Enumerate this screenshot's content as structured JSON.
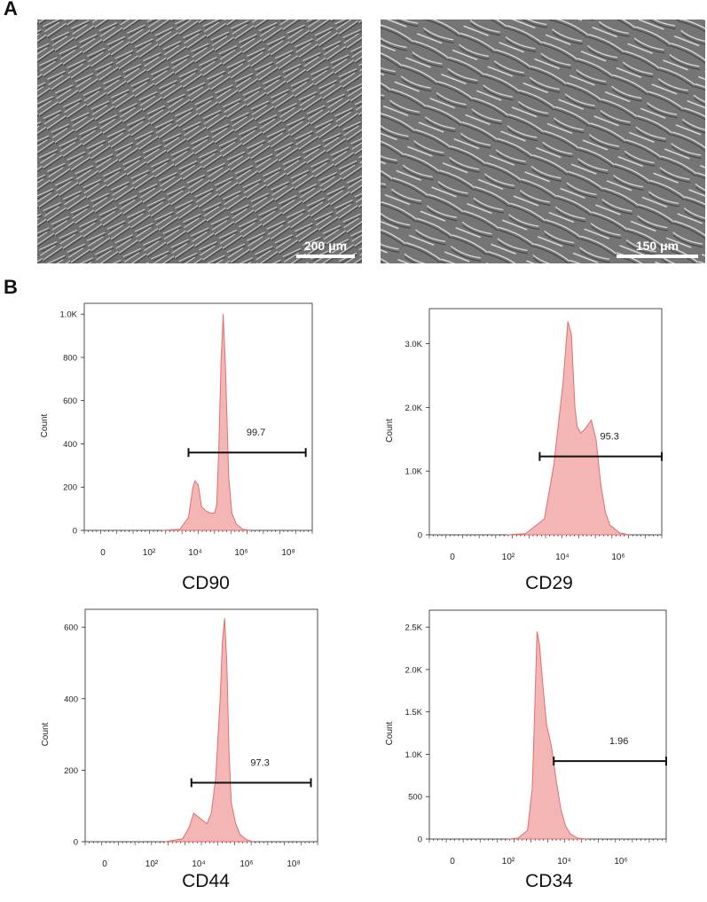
{
  "panel_labels": {
    "a": "A",
    "b": "B"
  },
  "micrographs": [
    {
      "scale_label": "200 μm"
    },
    {
      "scale_label": "150 μm"
    }
  ],
  "chart_data": [
    {
      "type": "area",
      "title": "CD90",
      "ylabel": "Count",
      "y_ticks": [
        0,
        200,
        400,
        600,
        800,
        1000
      ],
      "y_tick_labels": [
        "0",
        "200",
        "400",
        "600",
        "800",
        "1.0K"
      ],
      "ylim": [
        0,
        1050
      ],
      "x_tick_labels": [
        "0",
        "10²",
        "10⁴",
        "10⁶",
        "10⁸"
      ],
      "xlim_log10": [
        -1.2,
        9.3
      ],
      "gate_label": "99.7",
      "gate": {
        "start_log10": 3.6,
        "end_log10": 9.0,
        "y": 360
      },
      "series": [
        {
          "x_log10": [
            2.4,
            3.2,
            3.6,
            3.8,
            3.9,
            4.05,
            4.2,
            4.4,
            4.6,
            4.8,
            4.9,
            5.0,
            5.1,
            5.2,
            5.3,
            5.45,
            5.6,
            5.8,
            6.1,
            6.5
          ],
          "y": [
            0,
            5,
            60,
            200,
            230,
            210,
            110,
            90,
            80,
            80,
            120,
            400,
            780,
            1000,
            760,
            250,
            80,
            30,
            5,
            0
          ]
        }
      ]
    },
    {
      "type": "area",
      "title": "CD29",
      "ylabel": "Count",
      "y_ticks": [
        0,
        1000,
        2000,
        3000
      ],
      "y_tick_labels": [
        "0",
        "1.0K",
        "2.0K",
        "3.0K"
      ],
      "ylim": [
        0,
        3550
      ],
      "x_tick_labels": [
        "0",
        "10²",
        "10⁴",
        "10⁶"
      ],
      "xlim_log10": [
        -2.3,
        7.6
      ],
      "gate_label": "95.3",
      "gate": {
        "start_log10": 2.4,
        "end_log10": 7.6,
        "y": 1230
      },
      "series": [
        {
          "x_log10": [
            1.0,
            1.8,
            2.6,
            3.0,
            3.4,
            3.6,
            3.75,
            3.9,
            4.0,
            4.15,
            4.3,
            4.6,
            4.8,
            5.0,
            5.2,
            5.4,
            5.8,
            6.2
          ],
          "y": [
            0,
            20,
            250,
            1100,
            2400,
            3350,
            3150,
            2000,
            1700,
            1600,
            1650,
            1800,
            1500,
            800,
            350,
            150,
            30,
            0
          ]
        }
      ]
    },
    {
      "type": "area",
      "title": "CD44",
      "ylabel": "Count",
      "y_ticks": [
        0,
        200,
        400,
        600
      ],
      "y_tick_labels": [
        "0",
        "200",
        "400",
        "600"
      ],
      "ylim": [
        0,
        650
      ],
      "x_tick_labels": [
        "0",
        "10²",
        "10⁴",
        "10⁶",
        "10⁸"
      ],
      "xlim_log10": [
        -1.2,
        9.3
      ],
      "gate_label": "97.3",
      "gate": {
        "start_log10": 3.6,
        "end_log10": 9.0,
        "y": 165
      },
      "series": [
        {
          "x_log10": [
            2.4,
            3.2,
            3.5,
            3.7,
            3.9,
            4.1,
            4.3,
            4.5,
            4.7,
            4.9,
            5.0,
            5.1,
            5.2,
            5.3,
            5.4,
            5.6,
            5.8,
            6.1,
            6.4
          ],
          "y": [
            0,
            8,
            40,
            80,
            70,
            60,
            50,
            80,
            180,
            400,
            560,
            625,
            500,
            250,
            110,
            50,
            20,
            5,
            0
          ]
        }
      ]
    },
    {
      "type": "area",
      "title": "CD34",
      "ylabel": "Count",
      "y_ticks": [
        0,
        500,
        1000,
        1500,
        2000,
        2500
      ],
      "y_tick_labels": [
        "0",
        "500",
        "1.0K",
        "1.5K",
        "2.0K",
        "2.5K"
      ],
      "ylim": [
        0,
        2700
      ],
      "x_tick_labels": [
        "0",
        "10²",
        "10⁴",
        "10⁶"
      ],
      "xlim_log10": [
        -2.3,
        7.6
      ],
      "gate_label": "1.96",
      "gate": {
        "start_log10": 2.9,
        "end_log10": 7.6,
        "y": 920
      },
      "series": [
        {
          "x_log10": [
            1.0,
            1.4,
            1.8,
            2.0,
            2.1,
            2.2,
            2.3,
            2.45,
            2.6,
            2.8,
            3.0,
            3.2,
            3.4,
            3.6,
            3.9,
            4.3
          ],
          "y": [
            0,
            10,
            100,
            600,
            1500,
            2450,
            2300,
            1800,
            1350,
            1100,
            700,
            350,
            150,
            60,
            10,
            0
          ]
        }
      ]
    }
  ]
}
